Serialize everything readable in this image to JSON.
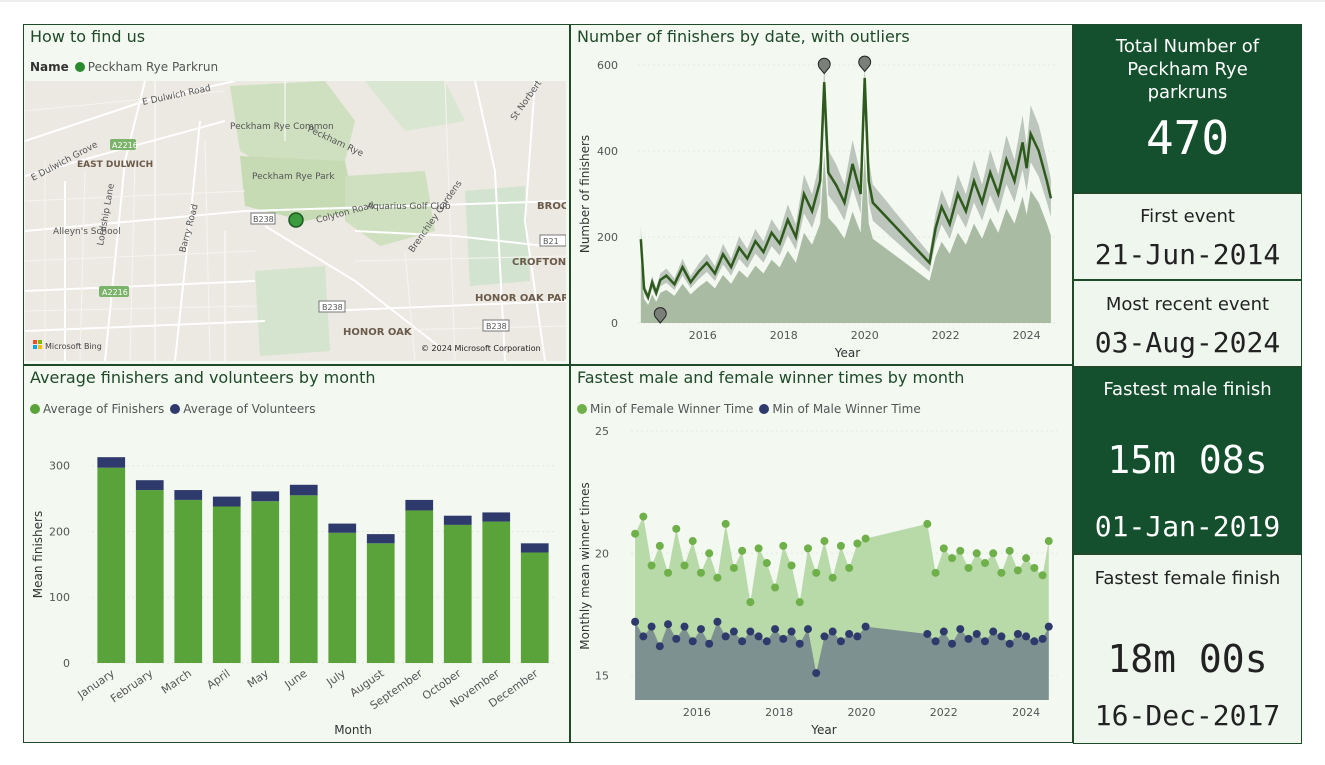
{
  "colors": {
    "dark_green": "#1e4a29",
    "card_dark": "#14502d",
    "finishers_green": "#5aa33a",
    "volunteers_navy": "#2e3a6b",
    "female_green": "#6fb04a",
    "male_navy": "#2e3a6b"
  },
  "map": {
    "title": "How to find us",
    "legend_name": "Name",
    "legend_item": "Peckham Rye Parkrun",
    "labels": [
      "E Dulwich Road",
      "A2216",
      "EAST DULWICH",
      "E Dulwich Grove",
      "Peckham Rye Common",
      "Peckham Rye",
      "Peckham Rye Park",
      "St Norbert Rd",
      "Alleyn's School",
      "Lordship Lane",
      "Barry Road",
      "B238",
      "Colyton Road",
      "Aquarius Golf Club",
      "Brenchley Gardens",
      "BROC",
      "B21",
      "CROFTON",
      "A2216",
      "HONOR OAK PARK",
      "B238",
      "HONOR OAK",
      "B238"
    ],
    "attribution": "Microsoft Bing",
    "copyright": "© 2024 Microsoft Corporation"
  },
  "cards": {
    "total": {
      "label": "Total Number of Peckham Rye parkruns",
      "value": "470"
    },
    "first": {
      "label": "First event",
      "value": "21-Jun-2014"
    },
    "recent": {
      "label": "Most recent event",
      "value": "03-Aug-2024"
    },
    "fastest_male": {
      "label": "Fastest male finish",
      "value": "15m 08s",
      "date": "01-Jan-2019"
    },
    "fastest_female": {
      "label": "Fastest female finish",
      "value": "18m 00s",
      "date": "16-Dec-2017"
    }
  },
  "chart_data": [
    {
      "id": "finishers_by_date",
      "type": "line",
      "title": "Number of finishers by date, with outliers",
      "xlabel": "Year",
      "ylabel": "Number of finishers",
      "x_ticks": [
        2016,
        2018,
        2020,
        2022,
        2024
      ],
      "y_ticks": [
        0,
        200,
        400,
        600
      ],
      "xlim": [
        2014.4,
        2024.75
      ],
      "ylim": [
        0,
        600
      ],
      "series": [
        {
          "x": [
            2014.47,
            2014.55,
            2014.65,
            2014.75,
            2014.85,
            2014.95,
            2015.1,
            2015.3,
            2015.5,
            2015.7,
            2015.9,
            2016.1,
            2016.3,
            2016.5,
            2016.7,
            2016.9,
            2017.1,
            2017.3,
            2017.5,
            2017.7,
            2017.9,
            2018.1,
            2018.3,
            2018.5,
            2018.7,
            2018.9,
            2019.0,
            2019.1,
            2019.3,
            2019.5,
            2019.7,
            2019.9,
            2020.0,
            2020.1,
            2020.2,
            2021.6,
            2021.75,
            2021.9,
            2022.1,
            2022.3,
            2022.5,
            2022.7,
            2022.9,
            2023.1,
            2023.3,
            2023.5,
            2023.7,
            2023.9,
            2024.0,
            2024.1,
            2024.3,
            2024.5,
            2024.6
          ],
          "y": [
            195,
            80,
            60,
            95,
            70,
            100,
            110,
            90,
            130,
            95,
            120,
            140,
            115,
            160,
            130,
            175,
            150,
            190,
            165,
            210,
            185,
            240,
            200,
            300,
            260,
            330,
            560,
            350,
            320,
            280,
            370,
            300,
            570,
            330,
            280,
            140,
            220,
            270,
            230,
            300,
            260,
            330,
            280,
            350,
            300,
            380,
            330,
            420,
            360,
            440,
            400,
            330,
            290
          ]
        }
      ],
      "outliers": [
        {
          "x": 2014.95,
          "y": 0
        },
        {
          "x": 2019.0,
          "y": 580
        },
        {
          "x": 2020.0,
          "y": 585
        }
      ]
    },
    {
      "id": "avg_by_month",
      "type": "bar",
      "title": "Average finishers and volunteers by month",
      "xlabel": "Month",
      "ylabel": "Mean finishers",
      "categories": [
        "January",
        "February",
        "March",
        "April",
        "May",
        "June",
        "July",
        "August",
        "September",
        "October",
        "November",
        "December"
      ],
      "y_ticks": [
        0,
        100,
        200,
        300
      ],
      "ylim": [
        0,
        330
      ],
      "series": [
        {
          "name": "Average of Finishers",
          "values": [
            297,
            263,
            248,
            238,
            246,
            255,
            198,
            182,
            232,
            210,
            215,
            168
          ]
        },
        {
          "name": "Average of Volunteers",
          "values": [
            16,
            15,
            15,
            15,
            15,
            16,
            14,
            14,
            16,
            14,
            14,
            14
          ]
        }
      ]
    },
    {
      "id": "winner_times",
      "type": "area",
      "title": "Fastest male and female winner times by month",
      "xlabel": "Year",
      "ylabel": "Monthly mean winner times",
      "x_ticks": [
        2016,
        2018,
        2020,
        2022,
        2024
      ],
      "y_ticks": [
        15,
        20,
        25
      ],
      "xlim": [
        2014.4,
        2024.75
      ],
      "ylim": [
        14,
        25
      ],
      "series": [
        {
          "name": "Min of Female Winner Time",
          "x": [
            2014.5,
            2014.7,
            2014.9,
            2015.1,
            2015.3,
            2015.5,
            2015.7,
            2015.9,
            2016.1,
            2016.3,
            2016.5,
            2016.7,
            2016.9,
            2017.1,
            2017.3,
            2017.5,
            2017.7,
            2017.9,
            2018.1,
            2018.3,
            2018.5,
            2018.7,
            2018.9,
            2019.1,
            2019.3,
            2019.5,
            2019.7,
            2019.9,
            2020.1,
            2021.6,
            2021.8,
            2022.0,
            2022.2,
            2022.4,
            2022.6,
            2022.8,
            2023.0,
            2023.2,
            2023.4,
            2023.6,
            2023.8,
            2024.0,
            2024.2,
            2024.4,
            2024.55
          ],
          "values": [
            20.8,
            21.5,
            19.5,
            20.3,
            19.2,
            21.0,
            19.5,
            20.5,
            19.2,
            20.0,
            19.0,
            21.2,
            19.4,
            20.1,
            18.0,
            20.2,
            19.6,
            18.6,
            20.3,
            19.5,
            18.0,
            20.2,
            19.2,
            20.5,
            19.0,
            20.3,
            19.4,
            20.4,
            20.6,
            21.2,
            19.2,
            20.2,
            19.8,
            20.1,
            19.4,
            20.0,
            19.6,
            20.0,
            19.2,
            20.1,
            19.3,
            19.8,
            19.4,
            19.1,
            20.5
          ]
        },
        {
          "name": "Min of Male Winner Time",
          "x": [
            2014.5,
            2014.7,
            2014.9,
            2015.1,
            2015.3,
            2015.5,
            2015.7,
            2015.9,
            2016.1,
            2016.3,
            2016.5,
            2016.7,
            2016.9,
            2017.1,
            2017.3,
            2017.5,
            2017.7,
            2017.9,
            2018.1,
            2018.3,
            2018.5,
            2018.7,
            2018.9,
            2019.1,
            2019.3,
            2019.5,
            2019.7,
            2019.9,
            2020.1,
            2021.6,
            2021.8,
            2022.0,
            2022.2,
            2022.4,
            2022.6,
            2022.8,
            2023.0,
            2023.2,
            2023.4,
            2023.6,
            2023.8,
            2024.0,
            2024.2,
            2024.4,
            2024.55
          ],
          "values": [
            17.2,
            16.6,
            17.0,
            16.2,
            17.1,
            16.5,
            17.0,
            16.4,
            16.9,
            16.3,
            17.2,
            16.6,
            16.8,
            16.4,
            16.8,
            16.6,
            16.4,
            16.9,
            16.5,
            16.8,
            16.3,
            16.9,
            15.1,
            16.6,
            16.8,
            16.4,
            16.7,
            16.6,
            17.0,
            16.7,
            16.4,
            16.8,
            16.3,
            16.9,
            16.5,
            16.7,
            16.4,
            16.8,
            16.6,
            16.3,
            16.7,
            16.6,
            16.4,
            16.5,
            17.0
          ]
        }
      ]
    }
  ]
}
